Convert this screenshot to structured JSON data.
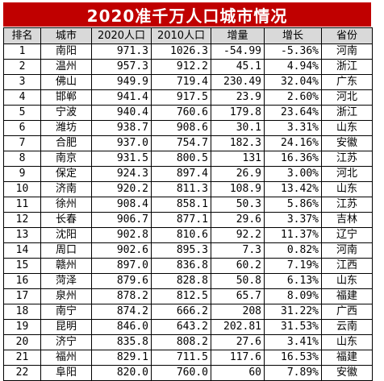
{
  "title": "2020准千万人口城市情况",
  "headers": [
    "排名",
    "城市",
    "2020人口",
    "2010人口",
    "增量",
    "增长",
    "省份"
  ],
  "rows": [
    [
      "1",
      "南阳",
      "971.3",
      "1026.3",
      "-54.99",
      "-5.36%",
      "河南"
    ],
    [
      "2",
      "温州",
      "957.3",
      "912.2",
      "45.1",
      "4.94%",
      "浙江"
    ],
    [
      "3",
      "佛山",
      "949.9",
      "719.4",
      "230.49",
      "32.04%",
      "广东"
    ],
    [
      "4",
      "邯郸",
      "941.4",
      "917.5",
      "23.9",
      "2.60%",
      "河北"
    ],
    [
      "5",
      "宁波",
      "940.4",
      "760.6",
      "179.8",
      "23.64%",
      "浙江"
    ],
    [
      "6",
      "潍坊",
      "938.7",
      "908.6",
      "30.1",
      "3.31%",
      "山东"
    ],
    [
      "7",
      "合肥",
      "937.0",
      "754.7",
      "182.3",
      "24.16%",
      "安徽"
    ],
    [
      "8",
      "南京",
      "931.5",
      "800.5",
      "131",
      "16.36%",
      "江苏"
    ],
    [
      "9",
      "保定",
      "924.3",
      "897.4",
      "26.9",
      "3.00%",
      "河北"
    ],
    [
      "10",
      "济南",
      "920.2",
      "811.3",
      "108.9",
      "13.42%",
      "山东"
    ],
    [
      "11",
      "徐州",
      "908.4",
      "858.1",
      "50.3",
      "5.86%",
      "江苏"
    ],
    [
      "12",
      "长春",
      "906.7",
      "877.1",
      "29.6",
      "3.37%",
      "吉林"
    ],
    [
      "13",
      "沈阳",
      "902.8",
      "810.6",
      "92.2",
      "11.37%",
      "辽宁"
    ],
    [
      "14",
      "周口",
      "902.6",
      "895.3",
      "7.3",
      "0.82%",
      "河南"
    ],
    [
      "15",
      "赣州",
      "897.0",
      "836.8",
      "60.2",
      "7.19%",
      "江西"
    ],
    [
      "16",
      "菏泽",
      "879.6",
      "828.8",
      "50.8",
      "6.13%",
      "山东"
    ],
    [
      "17",
      "泉州",
      "878.2",
      "812.5",
      "65.7",
      "8.09%",
      "福建"
    ],
    [
      "18",
      "南宁",
      "874.2",
      "666.2",
      "208",
      "31.22%",
      "广西"
    ],
    [
      "19",
      "昆明",
      "846.0",
      "643.2",
      "202.81",
      "31.53%",
      "云南"
    ],
    [
      "20",
      "济宁",
      "835.8",
      "808.2",
      "27.6",
      "3.41%",
      "山东"
    ],
    [
      "21",
      "福州",
      "829.1",
      "711.5",
      "117.6",
      "16.53%",
      "福建"
    ],
    [
      "22",
      "阜阳",
      "820.0",
      "760.0",
      "60",
      "7.89%",
      "安徽"
    ]
  ]
}
